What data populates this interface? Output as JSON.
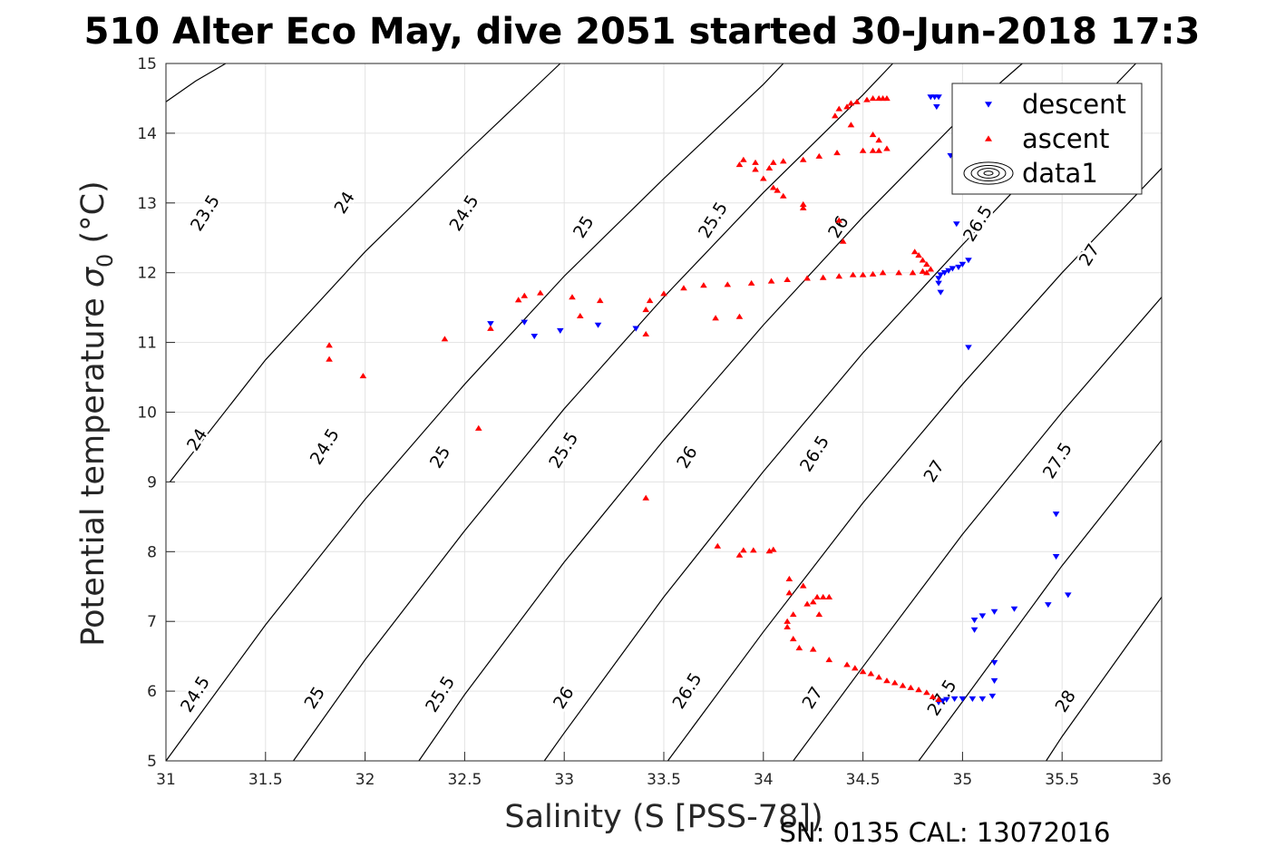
{
  "title": "510 Alter Eco May, dive 2051 started 30-Jun-2018 17:3",
  "footer_text": "SN: 0135  CAL: 13072016",
  "chart_data": {
    "type": "scatter",
    "title": "510 Alter Eco May, dive 2051 started 30-Jun-2018 17:3",
    "xlabel": "Salinity (S [PSS-78])",
    "ylabel": "Potential temperature",
    "ylabel_symbol": "σ",
    "ylabel_subscript": "0",
    "ylabel_unit": "(°C)",
    "xlim": [
      31,
      36
    ],
    "ylim": [
      5,
      15
    ],
    "xticks": [
      31,
      31.5,
      32,
      32.5,
      33,
      33.5,
      34,
      34.5,
      35,
      35.5,
      36
    ],
    "xtick_labels": [
      "31",
      "31.5",
      "32",
      "32.5",
      "33",
      "33.5",
      "34",
      "34.5",
      "35",
      "35.5",
      "36"
    ],
    "yticks": [
      5,
      6,
      7,
      8,
      9,
      10,
      11,
      12,
      13,
      14,
      15
    ],
    "ytick_labels": [
      "5",
      "6",
      "7",
      "8",
      "9",
      "10",
      "11",
      "12",
      "13",
      "14",
      "15"
    ],
    "grid": true,
    "legend": {
      "position": "top-right",
      "entries": [
        {
          "label": "descent",
          "marker": "triangle-down",
          "color": "#0000ff"
        },
        {
          "label": "ascent",
          "marker": "triangle-up",
          "color": "#ff0000"
        },
        {
          "label": "data1",
          "marker": "contour",
          "color": "#000000"
        }
      ]
    },
    "contours": {
      "name": "data1",
      "color": "#000000",
      "levels": [
        "23.5",
        "24",
        "24.5",
        "25",
        "25.5",
        "26",
        "26.5",
        "27",
        "27.5",
        "28"
      ],
      "lines": [
        [
          [
            31.0,
            14.45
          ],
          [
            31.15,
            14.75
          ],
          [
            31.3,
            15.0
          ]
        ],
        [
          [
            31.02,
            9.0
          ],
          [
            31.5,
            10.75
          ],
          [
            32.0,
            12.3
          ],
          [
            32.5,
            13.7
          ],
          [
            32.98,
            15.0
          ]
        ],
        [
          [
            31.0,
            5.0
          ],
          [
            31.5,
            6.95
          ],
          [
            32.0,
            8.75
          ],
          [
            32.5,
            10.4
          ],
          [
            33.0,
            11.95
          ],
          [
            33.5,
            13.35
          ],
          [
            34.0,
            14.7
          ],
          [
            34.1,
            15.0
          ]
        ],
        [
          [
            31.64,
            5.0
          ],
          [
            32.0,
            6.45
          ],
          [
            32.5,
            8.3
          ],
          [
            33.0,
            10.05
          ],
          [
            33.5,
            11.65
          ],
          [
            34.0,
            13.15
          ],
          [
            34.5,
            14.55
          ],
          [
            34.65,
            15.0
          ]
        ],
        [
          [
            32.27,
            5.0
          ],
          [
            32.5,
            5.95
          ],
          [
            33.0,
            7.85
          ],
          [
            33.5,
            9.6
          ],
          [
            34.0,
            11.25
          ],
          [
            34.5,
            12.8
          ],
          [
            35.0,
            14.25
          ],
          [
            35.3,
            15.0
          ]
        ],
        [
          [
            32.9,
            5.0
          ],
          [
            33.0,
            5.4
          ],
          [
            33.5,
            7.35
          ],
          [
            34.0,
            9.15
          ],
          [
            34.5,
            10.85
          ],
          [
            35.0,
            12.4
          ],
          [
            35.5,
            13.9
          ],
          [
            35.87,
            15.0
          ]
        ],
        [
          [
            33.52,
            5.0
          ],
          [
            34.0,
            6.85
          ],
          [
            34.5,
            8.7
          ],
          [
            35.0,
            10.4
          ],
          [
            35.5,
            12.0
          ],
          [
            36.0,
            13.5
          ]
        ],
        [
          [
            34.15,
            5.0
          ],
          [
            34.5,
            6.35
          ],
          [
            35.0,
            8.25
          ],
          [
            35.5,
            10.0
          ],
          [
            36.0,
            11.65
          ]
        ],
        [
          [
            34.78,
            5.0
          ],
          [
            35.0,
            5.85
          ],
          [
            35.5,
            7.8
          ],
          [
            36.0,
            9.6
          ]
        ],
        [
          [
            35.42,
            5.0
          ],
          [
            35.5,
            5.35
          ],
          [
            36.0,
            7.35
          ]
        ]
      ],
      "labels": [
        {
          "text": "23.5",
          "x": 31.2,
          "y": 12.85
        },
        {
          "text": "24",
          "x": 31.9,
          "y": 13.0
        },
        {
          "text": "24.5",
          "x": 32.5,
          "y": 12.85
        },
        {
          "text": "25",
          "x": 33.1,
          "y": 12.65
        },
        {
          "text": "25.5",
          "x": 33.75,
          "y": 12.75
        },
        {
          "text": "26",
          "x": 34.38,
          "y": 12.65
        },
        {
          "text": "26.5",
          "x": 35.08,
          "y": 12.7
        },
        {
          "text": "27",
          "x": 35.64,
          "y": 12.25
        },
        {
          "text": "24",
          "x": 31.16,
          "y": 9.6
        },
        {
          "text": "24.5",
          "x": 31.8,
          "y": 9.5
        },
        {
          "text": "25",
          "x": 32.38,
          "y": 9.35
        },
        {
          "text": "25.5",
          "x": 33.0,
          "y": 9.45
        },
        {
          "text": "26",
          "x": 33.62,
          "y": 9.35
        },
        {
          "text": "26.5",
          "x": 34.26,
          "y": 9.4
        },
        {
          "text": "27",
          "x": 34.86,
          "y": 9.15
        },
        {
          "text": "27.5",
          "x": 35.48,
          "y": 9.3
        },
        {
          "text": "24.5",
          "x": 31.15,
          "y": 5.95
        },
        {
          "text": "25",
          "x": 31.75,
          "y": 5.9
        },
        {
          "text": "25.5",
          "x": 32.38,
          "y": 5.95
        },
        {
          "text": "26",
          "x": 33.0,
          "y": 5.9
        },
        {
          "text": "26.5",
          "x": 33.62,
          "y": 6.0
        },
        {
          "text": "27",
          "x": 34.25,
          "y": 5.9
        },
        {
          "text": "27.5",
          "x": 34.9,
          "y": 5.9
        },
        {
          "text": "28",
          "x": 35.52,
          "y": 5.85
        }
      ]
    },
    "series": [
      {
        "name": "descent",
        "marker": "triangle-down",
        "color": "#0000ff",
        "points": [
          [
            34.84,
            14.52
          ],
          [
            34.86,
            14.52
          ],
          [
            34.88,
            14.52
          ],
          [
            34.87,
            14.38
          ],
          [
            34.94,
            13.68
          ],
          [
            34.97,
            12.7
          ],
          [
            35.03,
            12.18
          ],
          [
            35.0,
            12.12
          ],
          [
            34.98,
            12.08
          ],
          [
            34.95,
            12.06
          ],
          [
            34.93,
            12.03
          ],
          [
            34.91,
            12.0
          ],
          [
            34.89,
            11.97
          ],
          [
            34.88,
            11.92
          ],
          [
            34.88,
            11.85
          ],
          [
            34.89,
            11.72
          ],
          [
            35.03,
            10.93
          ],
          [
            32.63,
            11.27
          ],
          [
            32.8,
            11.29
          ],
          [
            32.85,
            11.09
          ],
          [
            32.98,
            11.17
          ],
          [
            33.17,
            11.25
          ],
          [
            33.36,
            11.2
          ],
          [
            35.47,
            8.54
          ],
          [
            35.47,
            7.93
          ],
          [
            35.53,
            7.38
          ],
          [
            35.43,
            7.24
          ],
          [
            35.26,
            7.18
          ],
          [
            35.16,
            7.14
          ],
          [
            35.1,
            7.08
          ],
          [
            35.06,
            7.02
          ],
          [
            35.06,
            6.88
          ],
          [
            35.16,
            6.41
          ],
          [
            35.16,
            6.15
          ],
          [
            35.15,
            5.93
          ],
          [
            35.1,
            5.89
          ],
          [
            35.05,
            5.89
          ],
          [
            35.0,
            5.89
          ],
          [
            34.96,
            5.89
          ],
          [
            34.92,
            5.88
          ],
          [
            34.9,
            5.86
          ],
          [
            34.88,
            5.84
          ]
        ]
      },
      {
        "name": "ascent",
        "marker": "triangle-up",
        "color": "#ff0000",
        "points": [
          [
            34.62,
            14.5
          ],
          [
            34.6,
            14.5
          ],
          [
            34.58,
            14.5
          ],
          [
            34.55,
            14.5
          ],
          [
            34.52,
            14.48
          ],
          [
            34.47,
            14.45
          ],
          [
            34.44,
            14.43
          ],
          [
            34.42,
            14.38
          ],
          [
            34.38,
            14.35
          ],
          [
            34.36,
            14.25
          ],
          [
            34.44,
            14.12
          ],
          [
            34.37,
            13.72
          ],
          [
            34.5,
            13.75
          ],
          [
            34.55,
            13.75
          ],
          [
            34.58,
            13.75
          ],
          [
            34.62,
            13.78
          ],
          [
            34.55,
            13.98
          ],
          [
            34.58,
            13.9
          ],
          [
            34.28,
            13.67
          ],
          [
            34.2,
            13.62
          ],
          [
            34.1,
            13.6
          ],
          [
            34.05,
            13.58
          ],
          [
            34.03,
            13.5
          ],
          [
            33.96,
            13.58
          ],
          [
            33.9,
            13.62
          ],
          [
            33.88,
            13.55
          ],
          [
            33.96,
            13.48
          ],
          [
            34.0,
            13.35
          ],
          [
            34.05,
            13.22
          ],
          [
            34.07,
            13.18
          ],
          [
            34.1,
            13.1
          ],
          [
            34.2,
            12.98
          ],
          [
            34.2,
            12.93
          ],
          [
            34.38,
            12.75
          ],
          [
            34.84,
            12.05
          ],
          [
            34.82,
            12.0
          ],
          [
            34.8,
            12.02
          ],
          [
            34.75,
            12.0
          ],
          [
            34.68,
            12.0
          ],
          [
            34.6,
            12.0
          ],
          [
            34.55,
            11.98
          ],
          [
            34.5,
            11.97
          ],
          [
            34.45,
            11.97
          ],
          [
            34.38,
            11.95
          ],
          [
            34.3,
            11.93
          ],
          [
            34.22,
            11.92
          ],
          [
            34.12,
            11.9
          ],
          [
            34.04,
            11.88
          ],
          [
            33.94,
            11.85
          ],
          [
            33.82,
            11.83
          ],
          [
            33.7,
            11.82
          ],
          [
            33.6,
            11.78
          ],
          [
            33.5,
            11.7
          ],
          [
            33.43,
            11.6
          ],
          [
            33.41,
            11.47
          ],
          [
            33.41,
            11.12
          ],
          [
            33.76,
            11.35
          ],
          [
            33.88,
            11.37
          ],
          [
            34.4,
            12.45
          ],
          [
            34.76,
            12.3
          ],
          [
            34.78,
            12.25
          ],
          [
            34.8,
            12.18
          ],
          [
            34.82,
            12.12
          ],
          [
            32.88,
            11.71
          ],
          [
            32.8,
            11.67
          ],
          [
            32.77,
            11.61
          ],
          [
            32.63,
            11.2
          ],
          [
            33.04,
            11.65
          ],
          [
            33.08,
            11.38
          ],
          [
            33.18,
            11.6
          ],
          [
            32.4,
            11.05
          ],
          [
            32.57,
            9.77
          ],
          [
            31.82,
            10.96
          ],
          [
            31.82,
            10.76
          ],
          [
            31.99,
            10.52
          ],
          [
            33.41,
            8.77
          ],
          [
            33.77,
            8.08
          ],
          [
            33.88,
            7.95
          ],
          [
            33.9,
            8.02
          ],
          [
            33.95,
            8.02
          ],
          [
            34.03,
            8.01
          ],
          [
            34.05,
            8.03
          ],
          [
            34.13,
            7.61
          ],
          [
            34.2,
            7.51
          ],
          [
            34.13,
            7.41
          ],
          [
            34.22,
            7.25
          ],
          [
            34.27,
            7.35
          ],
          [
            34.3,
            7.35
          ],
          [
            34.33,
            7.35
          ],
          [
            34.25,
            7.28
          ],
          [
            34.28,
            7.1
          ],
          [
            34.15,
            7.1
          ],
          [
            34.12,
            7.0
          ],
          [
            34.12,
            6.92
          ],
          [
            34.15,
            6.75
          ],
          [
            34.18,
            6.62
          ],
          [
            34.25,
            6.6
          ],
          [
            34.33,
            6.45
          ],
          [
            34.42,
            6.38
          ],
          [
            34.46,
            6.33
          ],
          [
            34.5,
            6.28
          ],
          [
            34.54,
            6.25
          ],
          [
            34.58,
            6.2
          ],
          [
            34.62,
            6.15
          ],
          [
            34.66,
            6.12
          ],
          [
            34.7,
            6.08
          ],
          [
            34.74,
            6.05
          ],
          [
            34.78,
            6.02
          ],
          [
            34.82,
            5.98
          ],
          [
            34.85,
            5.92
          ],
          [
            34.88,
            5.88
          ]
        ]
      }
    ]
  }
}
